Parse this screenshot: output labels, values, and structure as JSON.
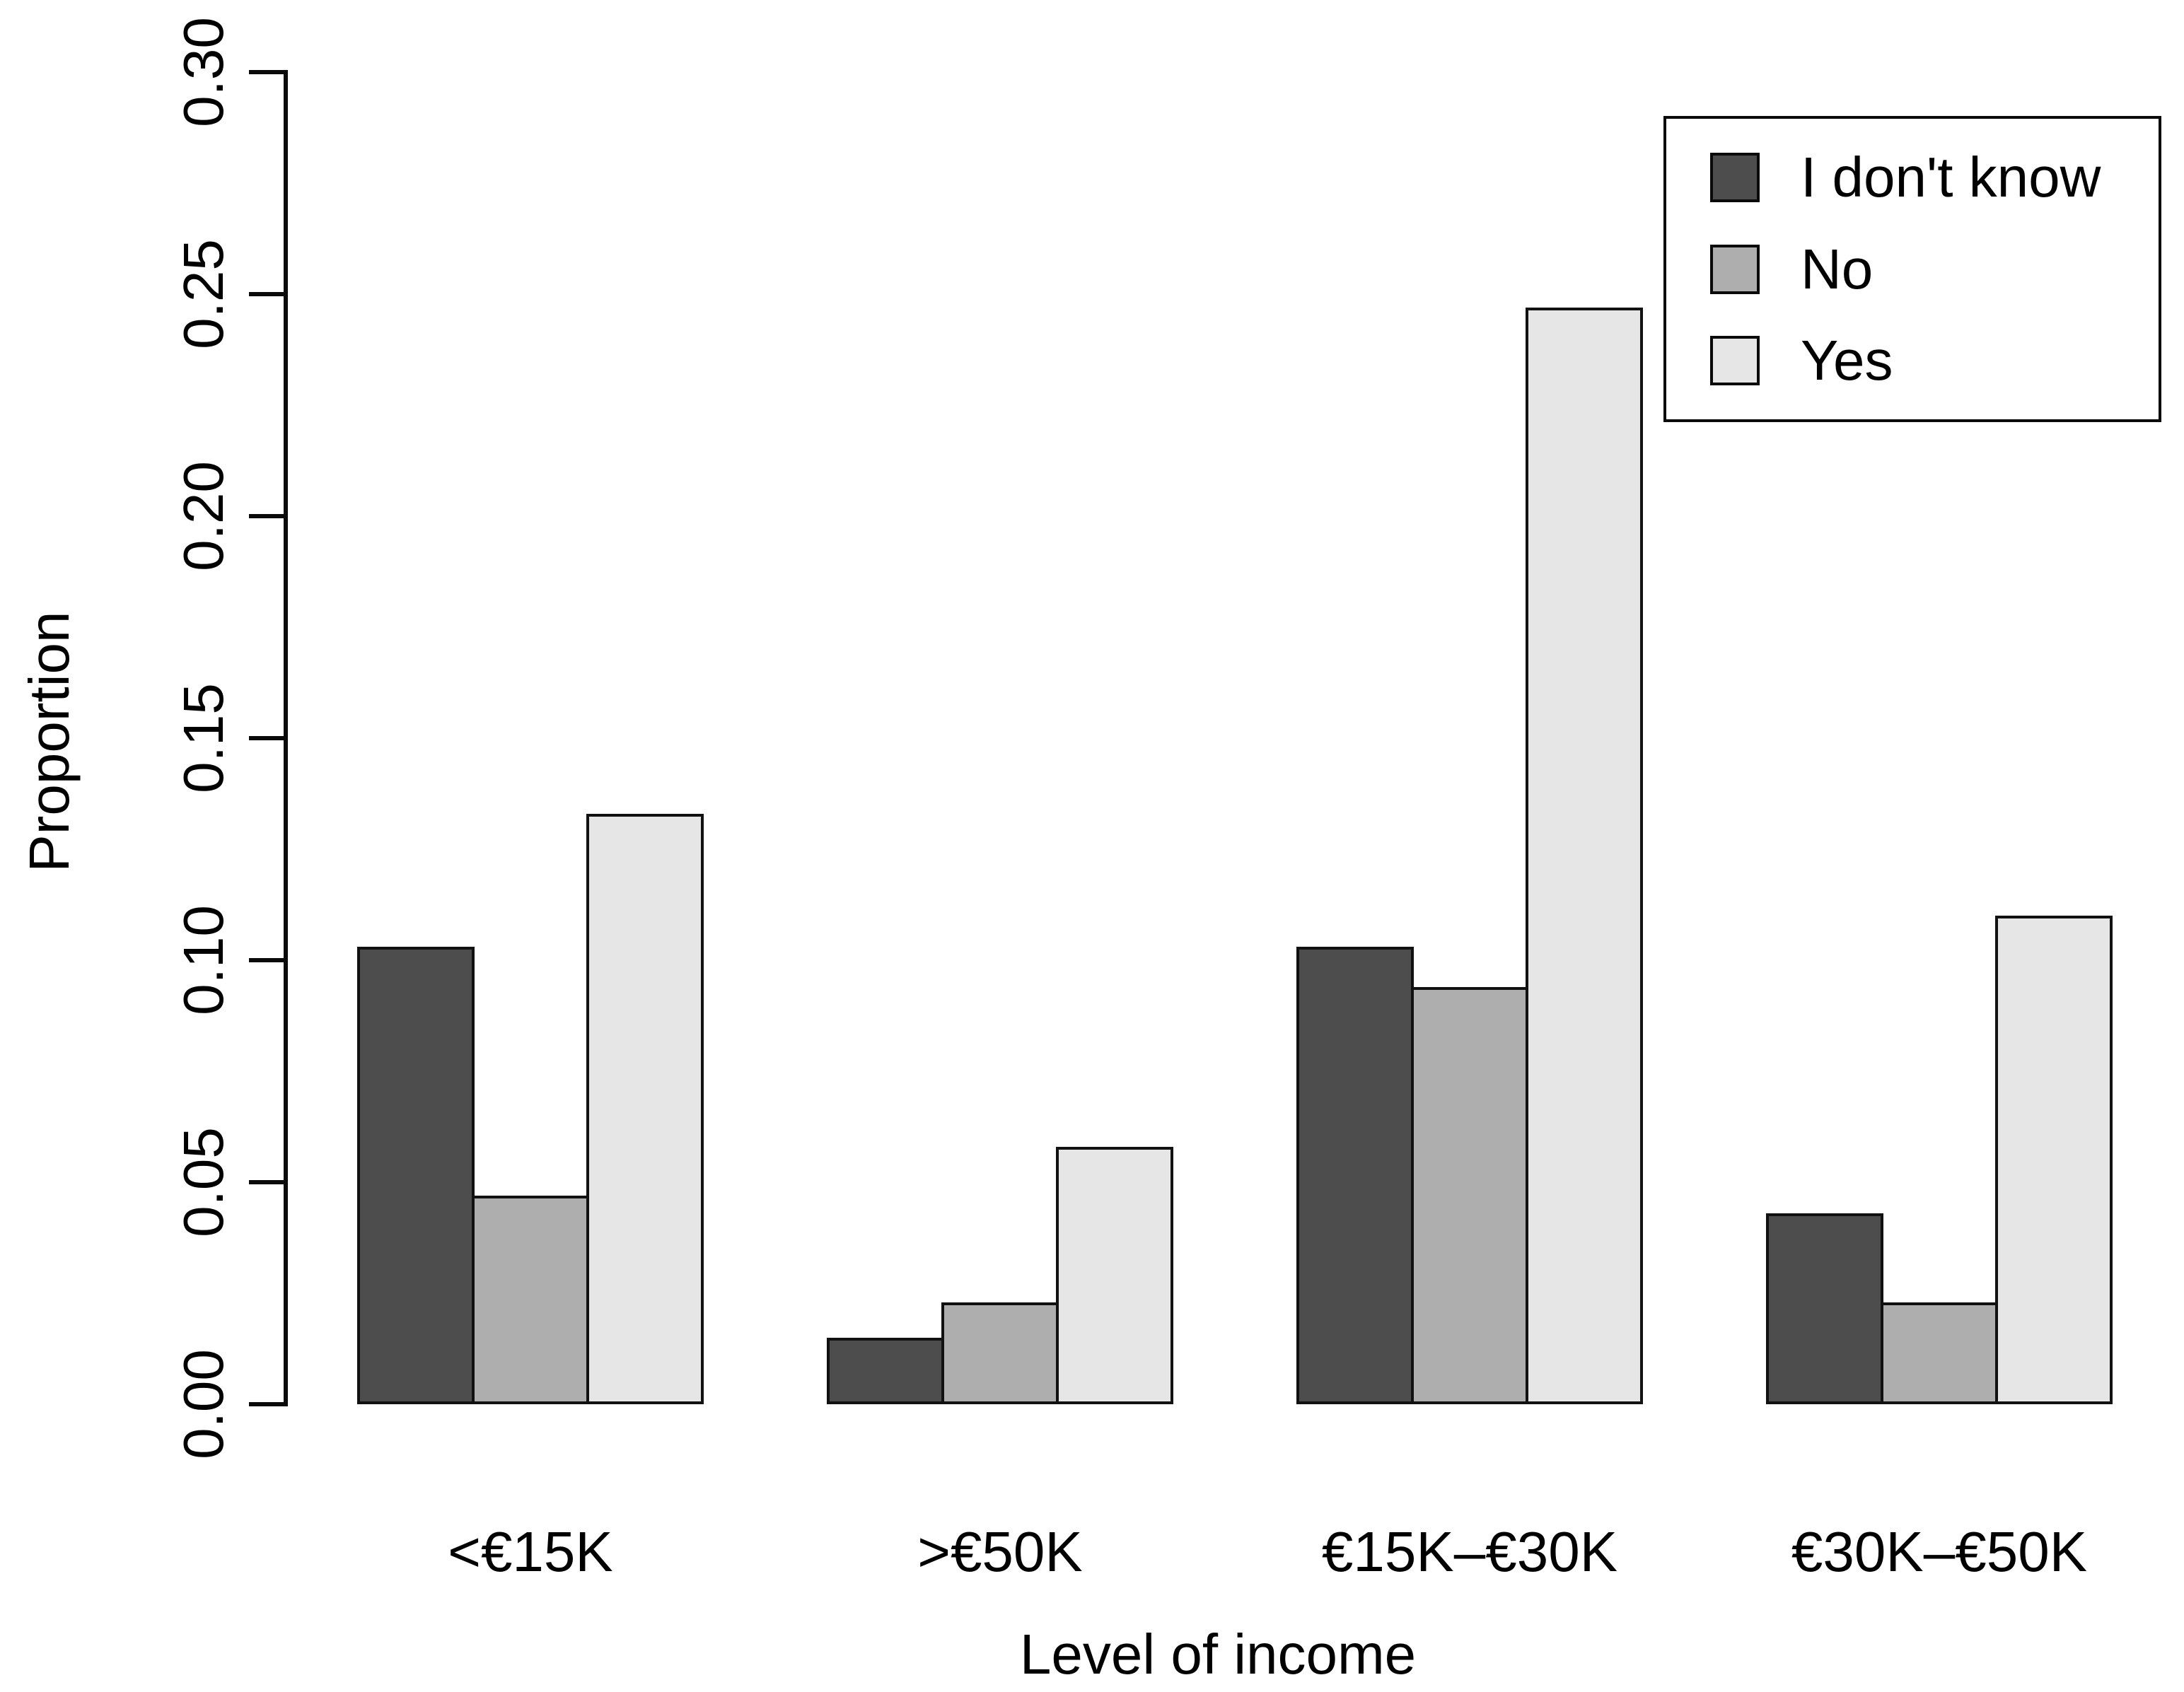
{
  "chart_data": {
    "type": "bar",
    "title": "",
    "xlabel": "Level of income",
    "ylabel": "Proportion",
    "categories": [
      "<€15K",
      ">€50K",
      "€15K–€30K",
      "€30K–€50K"
    ],
    "series": [
      {
        "name": "I don't know",
        "color": "#4D4D4D",
        "values": [
          0.103,
          0.015,
          0.103,
          0.043
        ]
      },
      {
        "name": "No",
        "color": "#AEAEAE",
        "values": [
          0.047,
          0.023,
          0.094,
          0.023
        ]
      },
      {
        "name": "Yes",
        "color": "#E6E6E6",
        "values": [
          0.133,
          0.058,
          0.247,
          0.11
        ]
      }
    ],
    "ylim": [
      0,
      0.3
    ],
    "y_ticks": [
      "0.00",
      "0.05",
      "0.10",
      "0.15",
      "0.20",
      "0.25",
      "0.30"
    ],
    "legend": {
      "position": "top-right",
      "entries": [
        "I don't know",
        "No",
        "Yes"
      ]
    },
    "grid": false,
    "axis_color": "#000000",
    "background": "#FFFFFF"
  }
}
